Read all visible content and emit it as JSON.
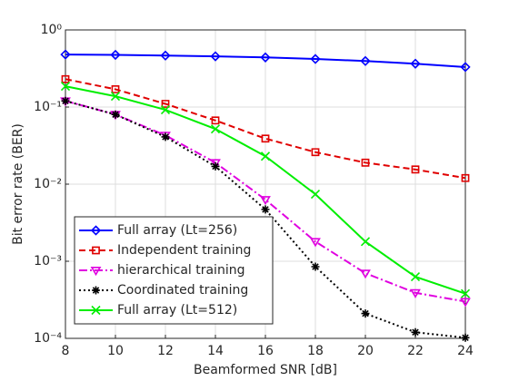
{
  "chart_data": {
    "type": "line",
    "xlabel": "Beamformed SNR [dB]",
    "ylabel": "Bit error rate (BER)",
    "x": [
      8,
      10,
      12,
      14,
      16,
      18,
      20,
      22,
      24
    ],
    "xlim": [
      8,
      24
    ],
    "xticks": [
      8,
      10,
      12,
      14,
      16,
      18,
      20,
      22,
      24
    ],
    "ylim": [
      0.0001,
      1
    ],
    "yscale": "log",
    "yticks": [
      {
        "value": 0.0001,
        "label": "10⁻⁴"
      },
      {
        "value": 0.001,
        "label": "10⁻³"
      },
      {
        "value": 0.01,
        "label": "10⁻²"
      },
      {
        "value": 0.1,
        "label": "10⁻¹"
      },
      {
        "value": 1,
        "label": "10⁰"
      }
    ],
    "grid": true,
    "legend": "lower left",
    "series": [
      {
        "name": "Full array (Lt=256)",
        "color": "#0000ff",
        "marker": "diamond",
        "line_style": "solid",
        "values": [
          0.48,
          0.475,
          0.465,
          0.455,
          0.44,
          0.42,
          0.395,
          0.365,
          0.33
        ]
      },
      {
        "name": "Independent training",
        "color": "#e00000",
        "marker": "square",
        "line_style": "dashed",
        "values": [
          0.23,
          0.17,
          0.11,
          0.067,
          0.039,
          0.026,
          0.019,
          0.0155,
          0.012
        ]
      },
      {
        "name": "hierarchical training",
        "color": "#e000e0",
        "marker": "triangle-down",
        "line_style": "dashdot",
        "values": [
          0.12,
          0.08,
          0.043,
          0.019,
          0.0063,
          0.0018,
          0.0007,
          0.00039,
          0.0003
        ]
      },
      {
        "name": "Coordinated training",
        "color": "#000000",
        "marker": "asterisk",
        "line_style": "dotted",
        "values": [
          0.12,
          0.08,
          0.041,
          0.017,
          0.0047,
          0.00085,
          0.00021,
          0.00012,
          0.000102
        ]
      },
      {
        "name": "Full array (Lt=512)",
        "color": "#00ee00",
        "marker": "x",
        "line_style": "solid",
        "values": [
          0.186,
          0.138,
          0.092,
          0.052,
          0.023,
          0.0074,
          0.0018,
          0.00063,
          0.00038
        ]
      }
    ]
  }
}
